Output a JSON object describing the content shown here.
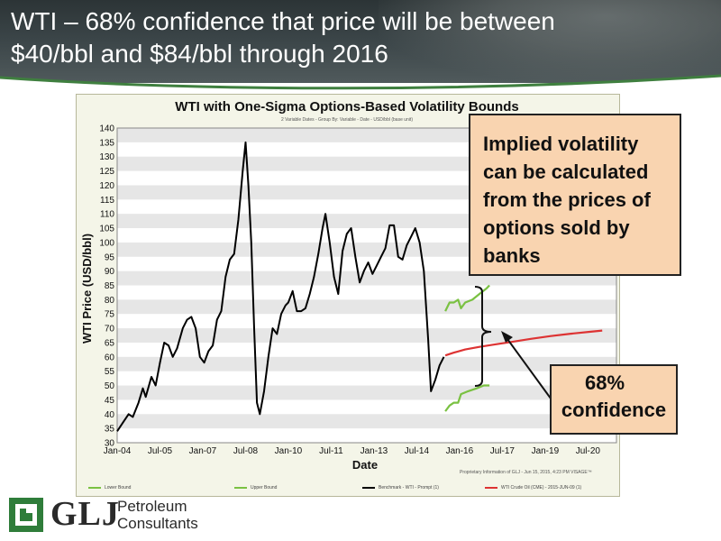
{
  "slide": {
    "title_line1": "WTI – 68% confidence that price will be between",
    "title_line2": "$40/bbl and $84/bbl through 2016"
  },
  "callouts": {
    "implied_volatility_lines": [
      "Implied volatility",
      "can be calculated",
      "from the prices of",
      "options sold by",
      "banks"
    ],
    "confidence_line1": "68%",
    "confidence_line2": "confidence"
  },
  "logo": {
    "name": "GLJ",
    "sub_line1": "Petroleum",
    "sub_line2": "Consultants"
  },
  "colors": {
    "benchmark": "#000000",
    "bounds": "#7ac142",
    "futures": "#dd3333",
    "callout_fill": "#f9d4b0",
    "brand_green": "#2f7d3a"
  },
  "chart_data": {
    "type": "line",
    "title": "WTI with One-Sigma Options-Based Volatility Bounds",
    "subtitle": "2 Variable Dates - Group By: Variable - Date - USD/bbl (base unit)",
    "xlabel": "Date",
    "ylabel": "WTI Price (USD/bbl)",
    "ylim": [
      30,
      140
    ],
    "yticks": [
      30,
      35,
      40,
      45,
      50,
      55,
      60,
      65,
      70,
      75,
      80,
      85,
      90,
      95,
      100,
      105,
      110,
      115,
      120,
      125,
      130,
      135,
      140
    ],
    "xlim": [
      2004.0,
      2021.5
    ],
    "xticks": [
      {
        "x": 2004.0,
        "label": "Jan-04"
      },
      {
        "x": 2005.5,
        "label": "Jul-05"
      },
      {
        "x": 2007.0,
        "label": "Jan-07"
      },
      {
        "x": 2008.5,
        "label": "Jul-08"
      },
      {
        "x": 2010.0,
        "label": "Jan-10"
      },
      {
        "x": 2011.5,
        "label": "Jul-11"
      },
      {
        "x": 2013.0,
        "label": "Jan-13"
      },
      {
        "x": 2014.5,
        "label": "Jul-14"
      },
      {
        "x": 2016.0,
        "label": "Jan-16"
      },
      {
        "x": 2017.5,
        "label": "Jul-17"
      },
      {
        "x": 2019.0,
        "label": "Jan-19"
      },
      {
        "x": 2020.5,
        "label": "Jul-20"
      }
    ],
    "grid": "horizontal bands",
    "legend_position": "bottom",
    "proprietary_note": "Proprietary Information of GLJ - Jun 15, 2015, 4:23 PM VISAGE™",
    "series": [
      {
        "name": "Benchmark - WTI - Prompt (1)",
        "color": "#000000",
        "points": [
          [
            2004.0,
            34
          ],
          [
            2004.2,
            37
          ],
          [
            2004.4,
            40
          ],
          [
            2004.55,
            39
          ],
          [
            2004.75,
            44
          ],
          [
            2004.9,
            49
          ],
          [
            2005.0,
            46
          ],
          [
            2005.2,
            53
          ],
          [
            2005.35,
            50
          ],
          [
            2005.5,
            58
          ],
          [
            2005.65,
            65
          ],
          [
            2005.8,
            64
          ],
          [
            2005.95,
            60
          ],
          [
            2006.1,
            63
          ],
          [
            2006.3,
            70
          ],
          [
            2006.45,
            73
          ],
          [
            2006.6,
            74
          ],
          [
            2006.75,
            70
          ],
          [
            2006.9,
            60
          ],
          [
            2007.05,
            58
          ],
          [
            2007.2,
            62
          ],
          [
            2007.35,
            64
          ],
          [
            2007.5,
            73
          ],
          [
            2007.65,
            76
          ],
          [
            2007.8,
            88
          ],
          [
            2007.95,
            94
          ],
          [
            2008.1,
            96
          ],
          [
            2008.25,
            108
          ],
          [
            2008.4,
            125
          ],
          [
            2008.5,
            135
          ],
          [
            2008.6,
            120
          ],
          [
            2008.7,
            100
          ],
          [
            2008.8,
            70
          ],
          [
            2008.9,
            44
          ],
          [
            2009.0,
            40
          ],
          [
            2009.15,
            48
          ],
          [
            2009.3,
            60
          ],
          [
            2009.45,
            70
          ],
          [
            2009.6,
            68
          ],
          [
            2009.75,
            75
          ],
          [
            2009.9,
            78
          ],
          [
            2010.0,
            79
          ],
          [
            2010.15,
            83
          ],
          [
            2010.3,
            76
          ],
          [
            2010.45,
            76
          ],
          [
            2010.6,
            77
          ],
          [
            2010.75,
            82
          ],
          [
            2010.9,
            88
          ],
          [
            2011.05,
            96
          ],
          [
            2011.2,
            105
          ],
          [
            2011.3,
            110
          ],
          [
            2011.45,
            100
          ],
          [
            2011.6,
            88
          ],
          [
            2011.75,
            82
          ],
          [
            2011.9,
            97
          ],
          [
            2012.05,
            103
          ],
          [
            2012.2,
            105
          ],
          [
            2012.35,
            95
          ],
          [
            2012.5,
            86
          ],
          [
            2012.65,
            90
          ],
          [
            2012.8,
            93
          ],
          [
            2012.95,
            89
          ],
          [
            2013.1,
            92
          ],
          [
            2013.25,
            95
          ],
          [
            2013.4,
            98
          ],
          [
            2013.55,
            106
          ],
          [
            2013.7,
            106
          ],
          [
            2013.85,
            95
          ],
          [
            2014.0,
            94
          ],
          [
            2014.15,
            99
          ],
          [
            2014.3,
            102
          ],
          [
            2014.45,
            105
          ],
          [
            2014.6,
            100
          ],
          [
            2014.75,
            90
          ],
          [
            2014.9,
            66
          ],
          [
            2015.0,
            48
          ],
          [
            2015.15,
            52
          ],
          [
            2015.3,
            57
          ],
          [
            2015.45,
            60
          ]
        ]
      },
      {
        "name": "Upper Bound",
        "color": "#7ac142",
        "points": [
          [
            2015.5,
            76
          ],
          [
            2015.65,
            79
          ],
          [
            2015.8,
            79
          ],
          [
            2015.95,
            80
          ],
          [
            2016.05,
            77
          ],
          [
            2016.2,
            79
          ],
          [
            2016.45,
            80
          ],
          [
            2016.7,
            82
          ],
          [
            2016.95,
            84
          ],
          [
            2017.05,
            85
          ]
        ]
      },
      {
        "name": "Lower Bound",
        "color": "#7ac142",
        "points": [
          [
            2015.5,
            41
          ],
          [
            2015.65,
            43
          ],
          [
            2015.8,
            44
          ],
          [
            2015.95,
            44
          ],
          [
            2016.05,
            47
          ],
          [
            2016.3,
            48
          ],
          [
            2016.6,
            49
          ],
          [
            2016.85,
            50
          ],
          [
            2017.05,
            50
          ]
        ]
      },
      {
        "name": "WTI Crude Oil (CME) - 2015-JUN-09 (1)",
        "color": "#dd3333",
        "points": [
          [
            2015.5,
            60.5
          ],
          [
            2015.8,
            61.5
          ],
          [
            2016.2,
            62.6
          ],
          [
            2016.7,
            63.5
          ],
          [
            2017.2,
            64.3
          ],
          [
            2017.8,
            65.2
          ],
          [
            2018.5,
            66.3
          ],
          [
            2019.2,
            67.3
          ],
          [
            2019.9,
            68.1
          ],
          [
            2020.6,
            68.8
          ],
          [
            2021.0,
            69.2
          ]
        ]
      }
    ],
    "legend": [
      {
        "label": "Lower Bound",
        "color": "#7ac142"
      },
      {
        "label": "Upper Bound",
        "color": "#7ac142"
      },
      {
        "label": "Benchmark - WTI - Prompt (1)",
        "color": "#000000"
      },
      {
        "label": "WTI Crude Oil (CME) - 2015-JUN-09 (1)",
        "color": "#dd3333"
      }
    ]
  }
}
